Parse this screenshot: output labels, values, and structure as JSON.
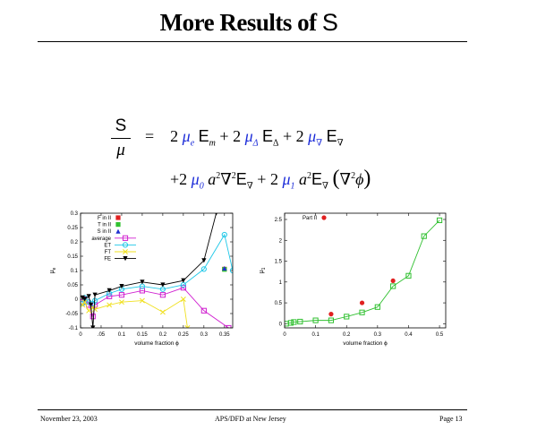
{
  "slide": {
    "title_text": "More Results of ",
    "title_symbol": "S"
  },
  "equation": {
    "lhs_num": "S",
    "lhs_den": "μ",
    "eq_sign": "=",
    "coef": "2",
    "mu_e": "μ",
    "mu_e_sub": "e",
    "E": "E",
    "E_m_sub": "m",
    "plus": "+",
    "mu_delta": "μ",
    "delta_sub": "Δ",
    "mu_nabla": "μ",
    "nabla_sub": "∇",
    "mu_0": "μ",
    "sub_0": "0",
    "a": "a",
    "sq": "2",
    "nabla": "∇",
    "mu_1": "μ",
    "sub_1": "1",
    "lparen": "(",
    "rparen": ")",
    "phi": "ϕ"
  },
  "chart_data": [
    {
      "type": "line",
      "xlabel": "volume fraction ϕ",
      "ylabel": "μ",
      "ylabel_sub": "e",
      "xlim": [
        0,
        0.37
      ],
      "ylim": [
        -0.1,
        0.3
      ],
      "xticks": [
        0,
        0.05,
        0.1,
        0.15,
        0.2,
        0.25,
        0.3,
        0.35
      ],
      "xtick_labels": [
        "0",
        ".05",
        "0.1",
        "0.15",
        "0.2",
        "0.25",
        "0.3",
        "0.35"
      ],
      "yticks": [
        -0.1,
        -0.05,
        0,
        0.05,
        0.1,
        0.15,
        0.2,
        0.25,
        0.3
      ],
      "ytick_labels": [
        "-0.1",
        "-0.05",
        "0",
        "0.05",
        "0.1",
        "0.15",
        "0.2",
        "0.25",
        "0.3"
      ],
      "legend_position": "top-left",
      "series": [
        {
          "name": "F in II",
          "color": "#e02020",
          "marker": "filled-square",
          "line": false,
          "x": [
            0.35
          ],
          "y": [
            0.105
          ]
        },
        {
          "name": "T in II",
          "color": "#30c030",
          "marker": "filled-square",
          "line": false,
          "x": [
            0.35
          ],
          "y": [
            0.104
          ]
        },
        {
          "name": "S in II",
          "color": "#2030d0",
          "marker": "filled-triangle",
          "line": false,
          "x": [
            0.35
          ],
          "y": [
            0.108
          ]
        },
        {
          "name": "average",
          "color": "#d020d0",
          "marker": "open-square",
          "line": true,
          "x": [
            0.005,
            0.01,
            0.02,
            0.03,
            0.035,
            0.07,
            0.1,
            0.15,
            0.2,
            0.25,
            0.3,
            0.36
          ],
          "y": [
            -0.01,
            0.0,
            -0.02,
            -0.06,
            -0.02,
            0.01,
            0.015,
            0.03,
            0.015,
            0.04,
            -0.04,
            -0.1
          ]
        },
        {
          "name": "ET",
          "color": "#20c8e8",
          "marker": "open-circle",
          "line": true,
          "x": [
            0.005,
            0.01,
            0.02,
            0.03,
            0.035,
            0.07,
            0.1,
            0.15,
            0.2,
            0.25,
            0.3,
            0.35,
            0.37
          ],
          "y": [
            -0.015,
            0.005,
            -0.01,
            -0.015,
            -0.005,
            0.02,
            0.035,
            0.045,
            0.035,
            0.05,
            0.105,
            0.225,
            0.1
          ]
        },
        {
          "name": "FT",
          "color": "#f0e020",
          "marker": "x",
          "line": true,
          "x": [
            0.005,
            0.01,
            0.02,
            0.03,
            0.035,
            0.07,
            0.1,
            0.15,
            0.2,
            0.25,
            0.26
          ],
          "y": [
            -0.02,
            -0.01,
            -0.04,
            -0.03,
            -0.035,
            -0.02,
            -0.01,
            -0.005,
            -0.045,
            0.0,
            -0.1
          ]
        },
        {
          "name": "FE",
          "color": "#000000",
          "marker": "filled-triangle-down",
          "line": true,
          "x": [
            0.005,
            0.01,
            0.02,
            0.025,
            0.03,
            0.035,
            0.07,
            0.1,
            0.15,
            0.2,
            0.25,
            0.3,
            0.33
          ],
          "y": [
            0.005,
            0.0,
            0.01,
            -0.02,
            -0.1,
            0.015,
            0.03,
            0.045,
            0.06,
            0.05,
            0.065,
            0.135,
            0.3
          ]
        }
      ]
    },
    {
      "type": "line",
      "xlabel": "volume fraction ϕ",
      "ylabel": "μ",
      "ylabel_sub": "1",
      "xlim": [
        0,
        0.52
      ],
      "ylim": [
        -0.1,
        2.65
      ],
      "xticks": [
        0,
        0.1,
        0.2,
        0.3,
        0.4,
        0.5
      ],
      "xtick_labels": [
        "0",
        "0.1",
        "0.2",
        "0.3",
        "0.4",
        "0.5"
      ],
      "yticks": [
        0,
        0.5,
        1,
        1.5,
        2,
        2.5
      ],
      "ytick_labels": [
        "0",
        "0.5",
        "1",
        "1.5",
        "2",
        "2.5"
      ],
      "legend_position": "top-left",
      "series": [
        {
          "name": "Part II",
          "color": "#e02020",
          "marker": "filled-circle",
          "line": false,
          "x": [
            0.15,
            0.25,
            0.35
          ],
          "y": [
            0.23,
            0.5,
            1.03
          ]
        },
        {
          "name": "",
          "color": "#30c030",
          "marker": "open-square",
          "line": true,
          "legend": false,
          "x": [
            0.005,
            0.02,
            0.03,
            0.05,
            0.1,
            0.15,
            0.2,
            0.25,
            0.3,
            0.35,
            0.4,
            0.45,
            0.5
          ],
          "y": [
            0.0,
            0.02,
            0.04,
            0.05,
            0.08,
            0.08,
            0.17,
            0.27,
            0.4,
            0.9,
            1.15,
            2.1,
            2.48
          ]
        }
      ]
    }
  ],
  "footer": {
    "date": "November 23, 2003",
    "event": "APS/DFD at New Jersey",
    "page": "Page 13"
  }
}
